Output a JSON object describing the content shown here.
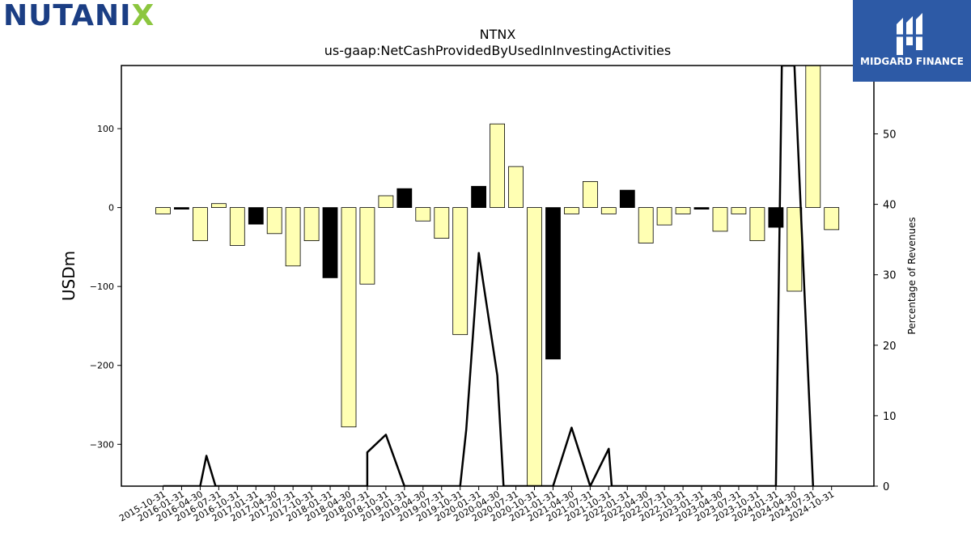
{
  "brand": {
    "company_left": "NUTANI",
    "company_x": "X"
  },
  "badge": {
    "label": "MIDGARD FINANCE"
  },
  "colors": {
    "bar_normal": "#ffffb3",
    "bar_highlight": "#000000",
    "line": "#000000"
  },
  "chart_data": {
    "type": "bar",
    "title": "NTNX",
    "subtitle": "us-gaap:NetCashProvidedByUsedInInvestingActivities",
    "ylabel": "USDm",
    "y2label": "Percentage of Revenues",
    "ylim": [
      -353,
      180
    ],
    "y2lim": [
      0,
      59.7
    ],
    "yticks": [
      100,
      0,
      -100,
      -200,
      -300
    ],
    "ytick_labels": [
      "100",
      "0",
      "−100",
      "−200",
      "−300"
    ],
    "y2ticks": [
      0,
      10,
      20,
      30,
      40,
      50
    ],
    "categories": [
      "2015-10-31",
      "2016-01-31",
      "2016-04-30",
      "2016-07-31",
      "2016-10-31",
      "2017-01-31",
      "2017-04-30",
      "2017-07-31",
      "2017-10-31",
      "2018-01-31",
      "2018-04-30",
      "2018-07-31",
      "2018-10-31",
      "2019-01-31",
      "2019-04-30",
      "2019-07-31",
      "2019-10-31",
      "2020-01-31",
      "2020-04-30",
      "2020-07-31",
      "2020-10-31",
      "2021-01-31",
      "2021-04-30",
      "2021-07-31",
      "2021-10-31",
      "2022-01-31",
      "2022-04-30",
      "2022-07-31",
      "2022-10-31",
      "2023-01-31",
      "2023-04-30",
      "2023-07-31",
      "2023-10-31",
      "2024-01-31",
      "2024-04-30",
      "2024-07-31",
      "2024-10-31"
    ],
    "values": [
      -8,
      -2,
      -42,
      5,
      -48,
      -21,
      -33,
      -74,
      -42,
      -89,
      -278,
      -97,
      15,
      24,
      -17,
      -39,
      -161,
      27,
      106,
      52,
      -360,
      -192,
      -8,
      33,
      -8,
      22,
      -45,
      -22,
      -8,
      -2,
      -30,
      -8,
      -42,
      -25,
      -106,
      185,
      -28
    ],
    "highlight": [
      false,
      true,
      false,
      false,
      false,
      true,
      false,
      false,
      false,
      true,
      false,
      false,
      false,
      true,
      false,
      false,
      false,
      true,
      false,
      false,
      false,
      true,
      false,
      false,
      false,
      true,
      false,
      false,
      false,
      true,
      false,
      false,
      false,
      true,
      false,
      false,
      false
    ],
    "line_series": {
      "name": "",
      "points": [
        [
          "2016-04-30",
          0
        ],
        [
          "2016-05-31",
          4.3
        ],
        [
          "2016-07-15",
          0
        ],
        [
          "2018-07-31",
          0
        ],
        [
          "2018-07-31",
          4.8
        ],
        [
          "2018-10-31",
          7.3
        ],
        [
          "2019-01-31",
          0
        ],
        [
          "2019-10-31",
          0
        ],
        [
          "2019-11-30",
          8
        ],
        [
          "2020-01-31",
          33.1
        ],
        [
          "2020-04-30",
          15.7
        ],
        [
          "2020-05-31",
          0
        ],
        [
          "2021-01-31",
          0
        ],
        [
          "2021-04-30",
          8.3
        ],
        [
          "2021-07-31",
          0
        ],
        [
          "2021-07-31",
          0
        ],
        [
          "2021-10-31",
          5.3
        ],
        [
          "2021-11-15",
          0
        ],
        [
          "2024-01-31",
          0
        ],
        [
          "2024-02-29",
          59.7
        ],
        [
          "2024-04-30",
          59.7
        ],
        [
          "2024-07-31",
          0
        ]
      ]
    }
  }
}
